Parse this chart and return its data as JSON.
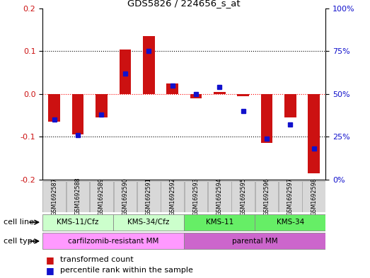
{
  "title": "GDS5826 / 224656_s_at",
  "samples": [
    "GSM1692587",
    "GSM1692588",
    "GSM1692589",
    "GSM1692590",
    "GSM1692591",
    "GSM1692592",
    "GSM1692593",
    "GSM1692594",
    "GSM1692595",
    "GSM1692596",
    "GSM1692597",
    "GSM1692598"
  ],
  "red_bars": [
    -0.065,
    -0.095,
    -0.055,
    0.103,
    0.135,
    0.025,
    -0.01,
    0.005,
    -0.005,
    -0.115,
    -0.055,
    -0.185
  ],
  "blue_markers": [
    35,
    26,
    38,
    62,
    75,
    55,
    50,
    54,
    40,
    24,
    32,
    18
  ],
  "ylim_left": [
    -0.2,
    0.2
  ],
  "ylim_right": [
    0,
    100
  ],
  "yticks_left": [
    -0.2,
    -0.1,
    0.0,
    0.1,
    0.2
  ],
  "yticks_right": [
    0,
    25,
    50,
    75,
    100
  ],
  "ytick_labels_right": [
    "0%",
    "25%",
    "50%",
    "75%",
    "100%"
  ],
  "cell_line_groups": [
    {
      "label": "KMS-11/Cfz",
      "start": 0,
      "end": 3
    },
    {
      "label": "KMS-34/Cfz",
      "start": 3,
      "end": 6
    },
    {
      "label": "KMS-11",
      "start": 6,
      "end": 9
    },
    {
      "label": "KMS-34",
      "start": 9,
      "end": 12
    }
  ],
  "cell_line_colors": [
    "#ccffcc",
    "#ccffcc",
    "#66ee66",
    "#66ee66"
  ],
  "cell_type_groups": [
    {
      "label": "carfilzomib-resistant MM",
      "start": 0,
      "end": 6
    },
    {
      "label": "parental MM",
      "start": 6,
      "end": 12
    }
  ],
  "cell_type_colors": [
    "#ff99ff",
    "#cc66cc"
  ],
  "red_color": "#cc1111",
  "blue_color": "#1111cc",
  "bar_width": 0.5,
  "marker_size": 5,
  "legend_transformed": "transformed count",
  "legend_percentile": "percentile rank within the sample",
  "cell_line_label": "cell line",
  "cell_type_label": "cell type",
  "sample_box_color": "#d8d8d8",
  "fig_bg": "#ffffff"
}
